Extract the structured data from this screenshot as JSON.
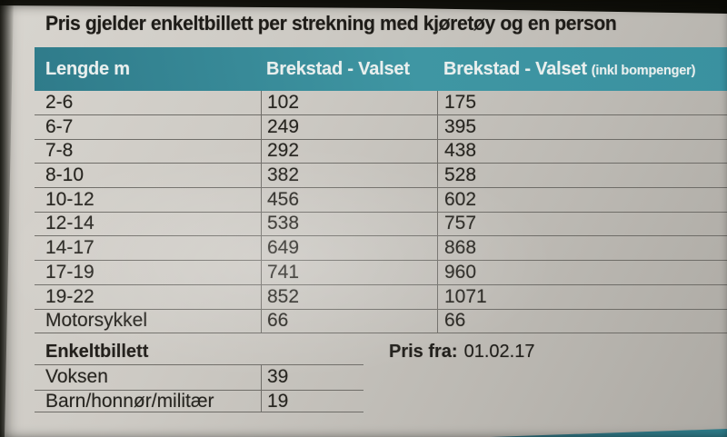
{
  "title": "Pris gjelder enkeltbillett per strekning med kjøretøy og en person",
  "colors": {
    "teal_header": "#3a91a0",
    "paper": "#c6c3bd",
    "photo_background": "#12120d",
    "table_line": "#6f6d68",
    "text": "#26241f",
    "header_text": "#e9efee"
  },
  "price_table": {
    "col_lengde": "Lengde m",
    "col_route": "Brekstad - Valset",
    "col_route_toll": "Brekstad - Valset",
    "col_route_toll_note": "(inkl bompenger)",
    "rows": [
      {
        "lengde": "2-6",
        "price": "102",
        "price_toll": "175"
      },
      {
        "lengde": "6-7",
        "price": "249",
        "price_toll": "395"
      },
      {
        "lengde": "7-8",
        "price": "292",
        "price_toll": "438"
      },
      {
        "lengde": "8-10",
        "price": "382",
        "price_toll": "528"
      },
      {
        "lengde": "10-12",
        "price": "456",
        "price_toll": "602"
      },
      {
        "lengde": "12-14",
        "price": "538",
        "price_toll": "757"
      },
      {
        "lengde": "14-17",
        "price": "649",
        "price_toll": "868"
      },
      {
        "lengde": "17-19",
        "price": "741",
        "price_toll": "960"
      },
      {
        "lengde": "19-22",
        "price": "852",
        "price_toll": "1071"
      },
      {
        "lengde": "Motorsykkel",
        "price": "66",
        "price_toll": "66"
      }
    ]
  },
  "single_ticket": {
    "heading": "Enkeltbillett",
    "rows": [
      {
        "label": "Voksen",
        "price": "39"
      },
      {
        "label": "Barn/honnør/militær",
        "price": "19"
      }
    ]
  },
  "valid_from": {
    "label": "Pris fra:",
    "date": "01.02.17"
  }
}
